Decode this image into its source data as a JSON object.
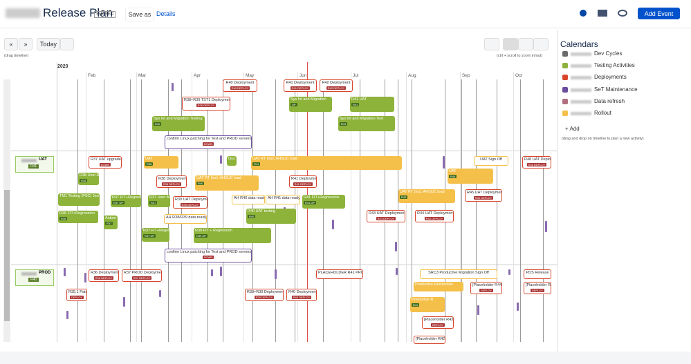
{
  "header": {
    "title": "Release Plan",
    "badge": "SHARED",
    "save_as": "Save as",
    "details": "Details",
    "add_event": "Add Event"
  },
  "toolbar": {
    "prev": "«",
    "next": "»",
    "today": "Today",
    "drag_hint": "(drag timeline)",
    "zoom_hint": "(ctrl + scroll to zoom in/out)"
  },
  "timeline": {
    "year": "2020",
    "months": [
      "Feb",
      "Mar",
      "Apr",
      "May",
      "Jun",
      "Jul",
      "Aug",
      "Sep",
      "Oct"
    ]
  },
  "lanes": [
    {
      "name": "UAT",
      "badge": "R41"
    },
    {
      "name": "PROD",
      "badge": "R40"
    }
  ],
  "calendars": {
    "title": "Calendars",
    "items": [
      {
        "name": "Dev Cycles",
        "color": "#6b6b6b"
      },
      {
        "name": "Testing Activities",
        "color": "#8db33a"
      },
      {
        "name": "Deployments",
        "color": "#d9452b"
      },
      {
        "name": "SeT Maintenance",
        "color": "#6a4c9c"
      },
      {
        "name": "Data refresh",
        "color": "#b0707e"
      },
      {
        "name": "Rollout",
        "color": "#f5c04a"
      }
    ],
    "add": "+ Add",
    "hint": "(drag and drop on timeline to plan a new activity)"
  },
  "events": [
    {
      "label": "R40 Deployment",
      "badge": "R40 DEPLOY",
      "color": "#d9452b",
      "outline": true
    },
    {
      "label": "R41 Deployment",
      "badge": "R41 DEPLOY",
      "color": "#d9452b",
      "outline": true
    },
    {
      "label": "R42 Deployment",
      "badge": "R42 DEPLOY",
      "color": "#d9452b",
      "outline": true
    },
    {
      "label": "R38+R39 TST1 Deployment",
      "badge": "R39 DEPLOY",
      "color": "#d9452b",
      "outline": true
    },
    {
      "label": "Sys Int and Migration",
      "badge": "UP",
      "color": "#8db33a",
      "outline": false
    },
    {
      "label": "R41 UAT",
      "badge": "R41",
      "color": "#8db33a",
      "outline": false
    },
    {
      "label": "Sys Int and Migration Testing",
      "badge": "R40",
      "color": "#8db33a",
      "outline": false
    },
    {
      "label": "Sys Int and Migration Test",
      "badge": "R41",
      "color": "#8db33a",
      "outline": false
    },
    {
      "label": "confirm Linux patching for Test and PROD servers...",
      "badge": "DOWN",
      "color": "#6a4c9c",
      "outline": true
    },
    {
      "label": "R37 UAT upgrade",
      "badge": "DOWN",
      "color": "#d9452b",
      "outline": true
    },
    {
      "label": "UAT",
      "badge": "R38",
      "color": "#f5c04a",
      "outline": false
    },
    {
      "label": "Ora",
      "color": "#8db33a",
      "outline": false
    },
    {
      "label": "UAT RT (incl. AHSUC load",
      "badge": "R41",
      "color": "#f5c04a",
      "outline": false
    },
    {
      "label": "UAT Sign Off",
      "color": "#f5c04a",
      "outline": true
    },
    {
      "label": "R48 UAT Deployment",
      "badge": "R48 DEPLOY",
      "color": "#d9452b",
      "outline": true
    },
    {
      "label": "R38 User A",
      "badge": "R38",
      "color": "#8db33a",
      "outline": false
    },
    {
      "label": "R38 Deployment",
      "badge": "R38 DEPLOY",
      "color": "#d9452b",
      "outline": true
    },
    {
      "label": "UAT RT (incl. AHSUC load",
      "badge": "R40",
      "color": "#f5c04a",
      "outline": false
    },
    {
      "label": "R41 Deployment",
      "badge": "R41 DEPLOY",
      "color": "#d9452b",
      "outline": true
    },
    {
      "label": "UAT",
      "badge": "R44",
      "color": "#f5c04a",
      "outline": false
    },
    {
      "label": "TM1 Testing (PSC) Jan",
      "color": "#8db33a",
      "outline": false
    },
    {
      "label": "R37 FIT+Regression",
      "badge": "R37 UP",
      "color": "#8db33a",
      "outline": false
    },
    {
      "label": "R37 User Acce",
      "badge": "R37",
      "color": "#8db33a",
      "outline": false
    },
    {
      "label": "R39 UAT Deployment",
      "badge": "R39 DEPLOY",
      "color": "#d9452b",
      "outline": true
    },
    {
      "label": "AH R40 data ready",
      "color": "#f5c04a",
      "outline": true
    },
    {
      "label": "AH R41 data ready",
      "color": "#f5c04a",
      "outline": true
    },
    {
      "label": "R41 FIT+Regression",
      "badge": "R41 UP",
      "color": "#8db33a",
      "outline": false
    },
    {
      "label": "UAT RT (incl. AHSUC load",
      "badge": "R42",
      "color": "#f5c04a",
      "outline": false
    },
    {
      "label": "R45 UAT Deployment",
      "badge": "R45 DEPLOY",
      "color": "#d9452b",
      "outline": true
    },
    {
      "label": "R36 FIT+Regression",
      "badge": "R36",
      "color": "#8db33a",
      "outline": false
    },
    {
      "label": "Autom",
      "badge": "R37",
      "color": "#8db33a",
      "outline": false
    },
    {
      "label": "AH R38/R39 data ready",
      "color": "#f5c04a",
      "outline": true
    },
    {
      "label": "R40 UAT testing",
      "badge": "R40",
      "color": "#8db33a",
      "outline": false
    },
    {
      "label": "R43 UAT Deployment",
      "badge": "R43 DEPLOY",
      "color": "#d9452b",
      "outline": true
    },
    {
      "label": "R44 UAT Deployment",
      "badge": "R44 DEPLOY",
      "color": "#d9452b",
      "outline": true
    },
    {
      "label": "R37 FIT+Regre",
      "badge": "R37 UP",
      "color": "#8db33a",
      "outline": false
    },
    {
      "label": "R39 FIT + Regression",
      "badge": "R39 UP",
      "color": "#8db33a",
      "outline": false
    },
    {
      "label": "confirm Linux patching for Test and PROD servers...",
      "badge": "DOWN",
      "color": "#6a4c9c",
      "outline": true
    },
    {
      "label": "R36 Deployment",
      "badge": "R36 DEPLOY",
      "color": "#d9452b",
      "outline": true
    },
    {
      "label": "R37 PROD Deployment",
      "badge": "R37 DEPLOY",
      "color": "#d9452b",
      "outline": true
    },
    {
      "label": "PLACEHOLDER R41 PROD",
      "color": "#d9452b",
      "outline": true
    },
    {
      "label": "SRC3 Productive Migration Sign Off",
      "color": "#f5c04a",
      "outline": true
    },
    {
      "label": "PDS Release",
      "color": "#d9452b",
      "outline": true
    },
    {
      "label": "R35.1 Patch",
      "badge": "DEPLOY",
      "color": "#d9452b",
      "outline": true
    },
    {
      "label": "R38+R39 Deployment",
      "badge": "R39 DEPLOY",
      "color": "#d9452b",
      "outline": true
    },
    {
      "label": "R40 Deployment",
      "badge": "R40 DEPLOY",
      "color": "#d9452b",
      "outline": true
    },
    {
      "label": "Productive Reconciliat",
      "color": "#f5c04a",
      "outline": false
    },
    {
      "label": "[Placeholder R44]",
      "badge": "DEPLOY",
      "color": "#d9452b",
      "outline": true
    },
    {
      "label": "[Placeholder R4",
      "badge": "DEPLOY",
      "color": "#d9452b",
      "outline": true
    },
    {
      "label": "Productive R",
      "badge": "R41",
      "color": "#f5c04a",
      "outline": false
    },
    {
      "label": "[Placeholder R43]",
      "badge": "DEPLOY",
      "color": "#d9452b",
      "outline": true
    },
    {
      "label": "[Placeholder R42]",
      "color": "#d9452b",
      "outline": true
    }
  ]
}
